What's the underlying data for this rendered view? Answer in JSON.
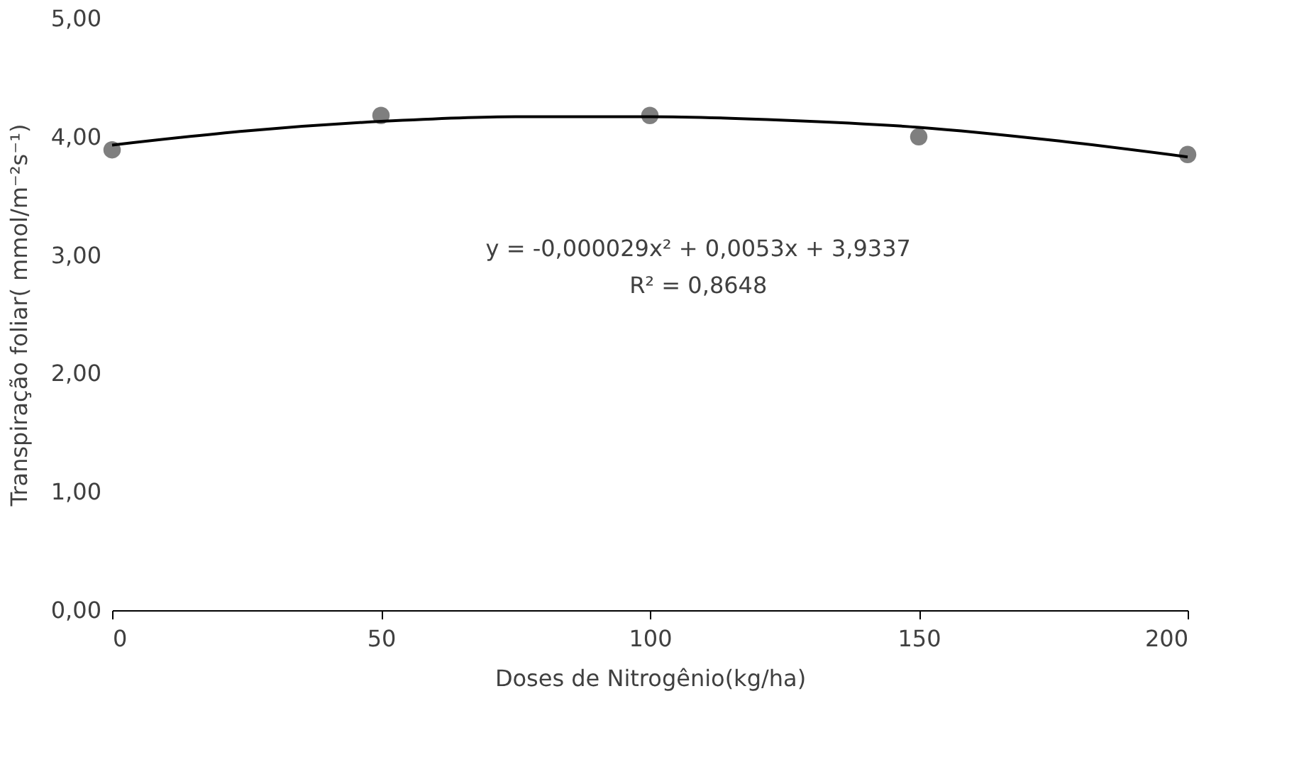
{
  "chart_data": {
    "type": "scatter",
    "xlabel": "Doses de Nitrogênio(kg/ha)",
    "ylabel": "Transpiração foliar( mmol/m⁻²s⁻¹)",
    "annotations": [
      "y = -0,000029x² + 0,0053x + 3,9337",
      "R² = 0,8648"
    ],
    "x": [
      0,
      50,
      100,
      150,
      200
    ],
    "series": [
      {
        "color": "#7f7f7f",
        "marker": "circle",
        "values": [
          3.89,
          4.18,
          4.18,
          4.0,
          3.85
        ]
      },
      {
        "type": "line",
        "color": "#000000",
        "marker": "none",
        "line_style": "solid",
        "x": [
          0,
          25,
          50,
          75,
          100,
          125,
          150,
          175,
          200
        ],
        "values": [
          3.93,
          4.05,
          4.13,
          4.17,
          4.17,
          4.14,
          4.08,
          3.97,
          3.83
        ]
      }
    ],
    "xlim": [
      0,
      200
    ],
    "xticks": [
      0,
      50,
      100,
      150,
      200
    ],
    "ylim": [
      0,
      5
    ],
    "yticks": [
      {
        "value": 0,
        "label": "0,00"
      },
      {
        "value": 1,
        "label": "1,00"
      },
      {
        "value": 2,
        "label": "2,00"
      },
      {
        "value": 3,
        "label": "3,00"
      },
      {
        "value": 4,
        "label": "4,00"
      },
      {
        "value": 5,
        "label": "5,00"
      }
    ],
    "grid": false
  }
}
